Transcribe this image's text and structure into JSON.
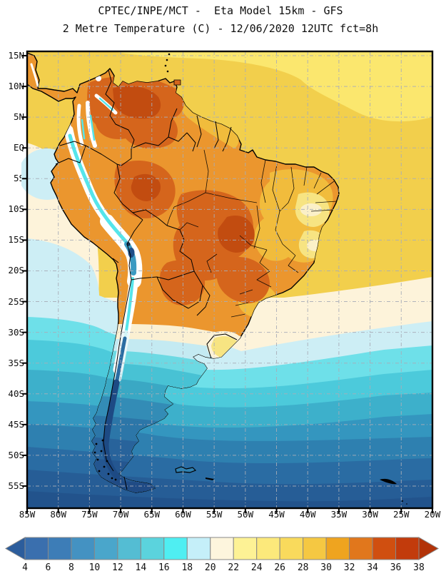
{
  "header": {
    "line1": "CPTEC/INPE/MCT -  Eta Model 15km - GFS",
    "line2": "2 Metre Temperature (C) - 12/06/2020 12UTC fct=8h"
  },
  "axes": {
    "lat_labels": [
      "15N",
      "10N",
      "5N",
      "EQ",
      "5S",
      "10S",
      "15S",
      "20S",
      "25S",
      "30S",
      "35S",
      "40S",
      "45S",
      "50S",
      "55S"
    ],
    "lon_labels": [
      "85W",
      "80W",
      "75W",
      "70W",
      "65W",
      "60W",
      "55W",
      "50W",
      "45W",
      "40W",
      "35W",
      "30W",
      "25W",
      "20W"
    ]
  },
  "colorbar": {
    "tick_labels": [
      "4",
      "6",
      "8",
      "10",
      "12",
      "14",
      "16",
      "18",
      "20",
      "22",
      "24",
      "26",
      "28",
      "30",
      "32",
      "34",
      "36",
      "38"
    ],
    "segment_colors": [
      "#3a6fae",
      "#3d7db7",
      "#4492c2",
      "#4aa6cb",
      "#54bdd3",
      "#5bd3dd",
      "#4feef2",
      "#c5eff9",
      "#fdf5dd",
      "#fdf295",
      "#fce97b",
      "#f9da5c",
      "#f5c842",
      "#efa41f",
      "#e1771c",
      "#d04f10",
      "#c23b0c"
    ],
    "arrow_left_color": "#2c5d9c",
    "arrow_right_color": "#b23309"
  },
  "chart_data": {
    "type": "heatmap",
    "title": "2 Metre Temperature (C)",
    "model_source_line": "CPTEC/INPE/MCT -  Eta Model 15km - GFS",
    "valid_line": "2 Metre Temperature (C) - 12/06/2020 12UTC fct=8h",
    "units": "C",
    "scale_values": [
      4,
      6,
      8,
      10,
      12,
      14,
      16,
      18,
      20,
      22,
      24,
      26,
      28,
      30,
      32,
      34,
      36,
      38
    ],
    "lon_range": [
      "85W",
      "20W"
    ],
    "lat_range": [
      "15N",
      "55S"
    ],
    "grid": "dashed 5-degree graticule",
    "legend_position": "bottom"
  },
  "palette": {
    "ocean_gold": "#f2cf4c",
    "ocean_light_yellow": "#fbe76e",
    "ocean_cream": "#fdf3da",
    "ocean_pale_cyan": "#cdeef5",
    "ocean_bright_cyan": "#6ee0e9",
    "ocean_cyan": "#4ccadb",
    "ocean_teal": "#3db0cb",
    "ocean_blues": [
      "#3496bf",
      "#2e80b0",
      "#2a6ca3",
      "#265d96",
      "#22538c"
    ],
    "land_base_orange": "#eb962e",
    "land_dark_orange": "#d5651c",
    "land_deep_orange": "#c24c10",
    "land_gold": "#f1bc3c",
    "land_pale_yellow": "#f7e482",
    "andes_white": "#ffffff",
    "andes_cyan": "#55e5eb",
    "andes_navy": "#1d4a84",
    "grid_gray": "#a8adb8"
  }
}
